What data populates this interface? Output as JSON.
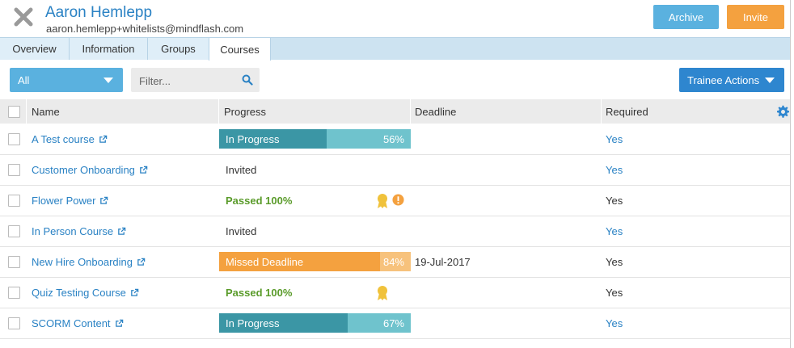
{
  "header": {
    "name": "Aaron Hemlepp",
    "email": "aaron.hemlepp+whitelists@mindflash.com",
    "archive_label": "Archive",
    "invite_label": "Invite"
  },
  "tabs": [
    {
      "label": "Overview"
    },
    {
      "label": "Information"
    },
    {
      "label": "Groups"
    },
    {
      "label": "Courses",
      "active": true
    }
  ],
  "toolbar": {
    "filter_value": "All",
    "search_placeholder": "Filter...",
    "trainee_actions_label": "Trainee Actions"
  },
  "table": {
    "columns": [
      "Name",
      "Progress",
      "Deadline",
      "Required"
    ],
    "rows": [
      {
        "name": "A Test course",
        "status": "In Progress",
        "percent": "56%",
        "progress": 56,
        "deadline": "",
        "required": "Yes",
        "required_link": true
      },
      {
        "name": "Customer Onboarding",
        "status": "Invited",
        "percent": "",
        "deadline": "",
        "required": "Yes",
        "required_link": true
      },
      {
        "name": "Flower Power",
        "status": "Passed 100%",
        "percent": "",
        "deadline": "",
        "required": "Yes",
        "required_link": false,
        "icons": [
          "certificate-icon",
          "warning-icon"
        ]
      },
      {
        "name": "In Person Course",
        "status": "Invited",
        "percent": "",
        "deadline": "",
        "required": "Yes",
        "required_link": true
      },
      {
        "name": "New Hire Onboarding",
        "status": "Missed Deadline",
        "percent": "84%",
        "progress": 84,
        "deadline": "19-Jul-2017",
        "required": "Yes",
        "required_link": false
      },
      {
        "name": "Quiz Testing Course",
        "status": "Passed 100%",
        "percent": "",
        "deadline": "",
        "required": "Yes",
        "required_link": false,
        "icons": [
          "certificate-icon"
        ]
      },
      {
        "name": "SCORM Content",
        "status": "In Progress",
        "percent": "67%",
        "progress": 67,
        "deadline": "",
        "required": "Yes",
        "required_link": true
      }
    ]
  },
  "colors": {
    "accent": "#2a82c4",
    "archive": "#5ab1df",
    "invite": "#f4a13f",
    "in_progress_fill": "#3b96a5",
    "in_progress_track": "#6fc3cd",
    "missed_fill": "#f4a13f",
    "missed_track": "#f7c27c",
    "passed": "#5a9b2a"
  }
}
